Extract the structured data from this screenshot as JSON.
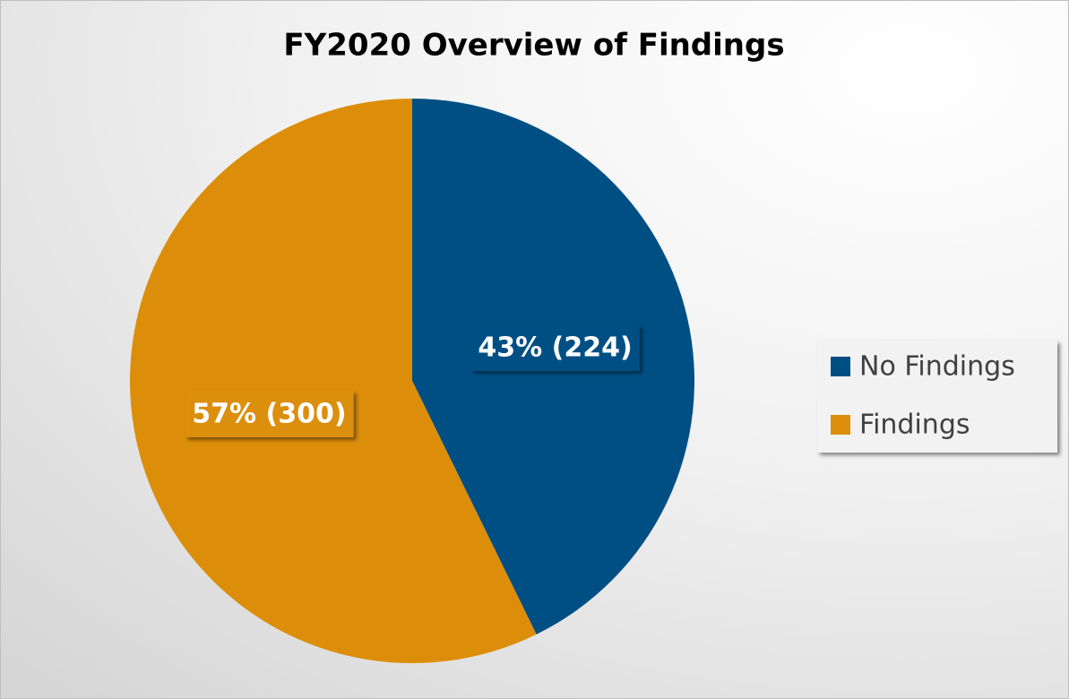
{
  "chart_data": {
    "type": "pie",
    "title": "FY2020 Overview of Findings",
    "categories": [
      "No Findings",
      "Findings"
    ],
    "values": [
      224,
      300
    ],
    "value_labels": [
      "43% (224)",
      "57% (300)"
    ],
    "colors": [
      "#004f84",
      "#dc8e0a"
    ],
    "legend": "right"
  }
}
